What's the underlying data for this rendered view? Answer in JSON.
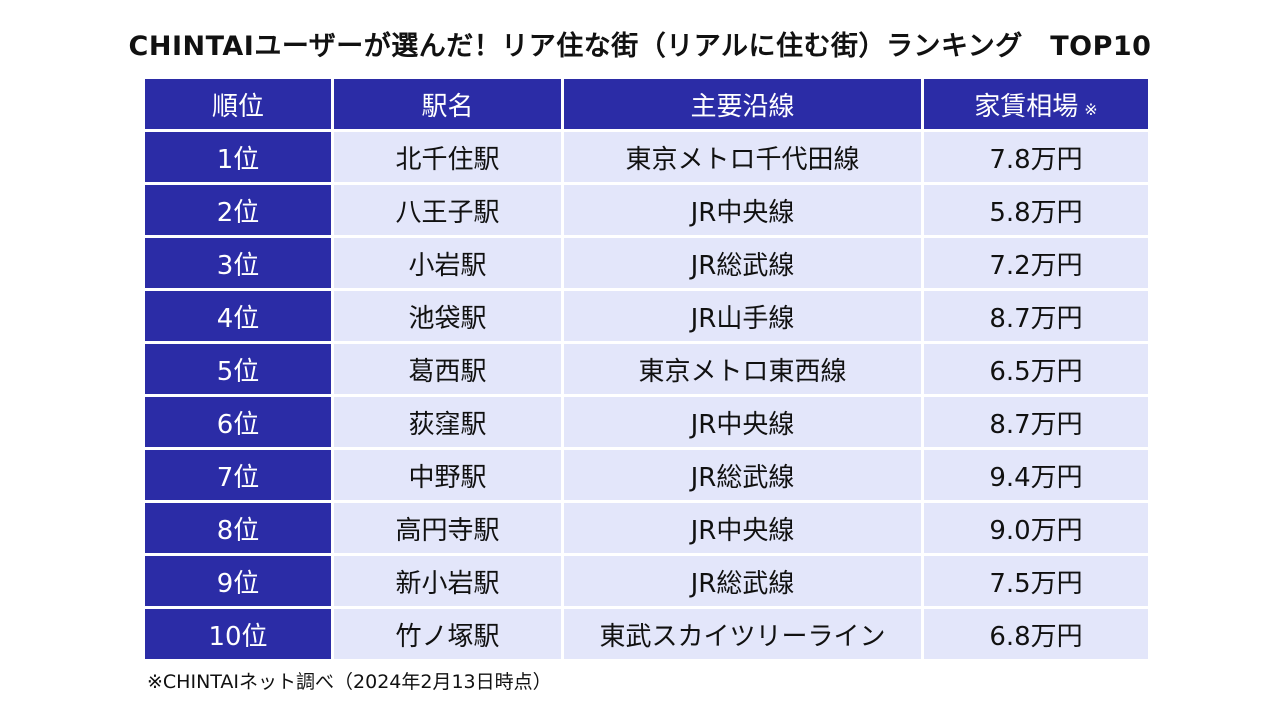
{
  "title": "CHINTAIユーザーが選んだ！リア住な街（リアルに住む街）ランキング　TOP10",
  "table": {
    "headers": {
      "rank": "順位",
      "station": "駅名",
      "line": "主要沿線",
      "rent": "家賃相場",
      "rent_note_mark": "※"
    },
    "rows": [
      {
        "rank": "1位",
        "station": "北千住駅",
        "line": "東京メトロ千代田線",
        "rent": "7.8万円"
      },
      {
        "rank": "2位",
        "station": "八王子駅",
        "line": "JR中央線",
        "rent": "5.8万円"
      },
      {
        "rank": "3位",
        "station": "小岩駅",
        "line": "JR総武線",
        "rent": "7.2万円"
      },
      {
        "rank": "4位",
        "station": "池袋駅",
        "line": "JR山手線",
        "rent": "8.7万円"
      },
      {
        "rank": "5位",
        "station": "葛西駅",
        "line": "東京メトロ東西線",
        "rent": "6.5万円"
      },
      {
        "rank": "6位",
        "station": "荻窪駅",
        "line": "JR中央線",
        "rent": "8.7万円"
      },
      {
        "rank": "7位",
        "station": "中野駅",
        "line": "JR総武線",
        "rent": "9.4万円"
      },
      {
        "rank": "8位",
        "station": "高円寺駅",
        "line": "JR中央線",
        "rent": "9.0万円"
      },
      {
        "rank": "9位",
        "station": "新小岩駅",
        "line": "JR総武線",
        "rent": "7.5万円"
      },
      {
        "rank": "10位",
        "station": "竹ノ塚駅",
        "line": "東武スカイツリーライン",
        "rent": "6.8万円"
      }
    ]
  },
  "footnote": "※CHINTAIネット調べ（2024年2月13日時点）",
  "colors": {
    "header_bg": "#2b2ca6",
    "cell_bg": "#e3e6fa",
    "header_text": "#ffffff"
  }
}
